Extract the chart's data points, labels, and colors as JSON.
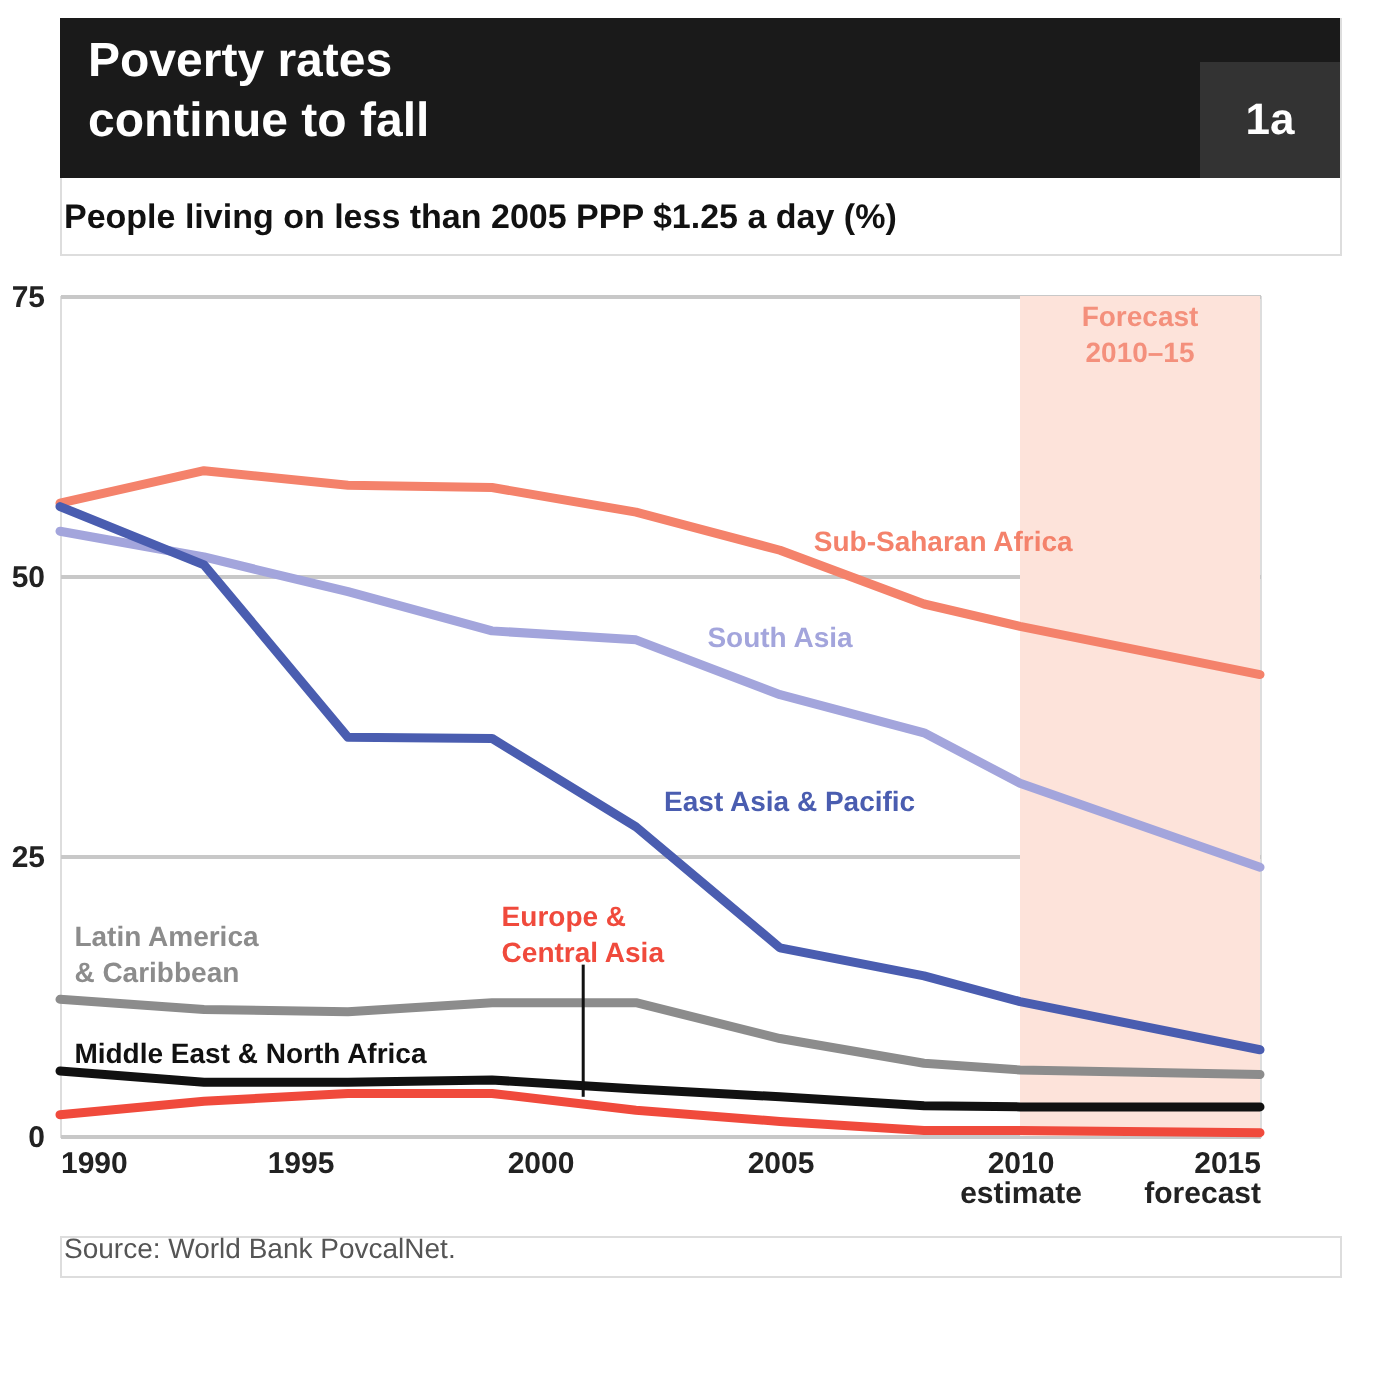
{
  "chart_data": {
    "type": "line",
    "title": "Poverty rates continue to fall",
    "subtitle": "People living on less than 2005 PPP $1.25 a day (%)",
    "x": [
      1990,
      1993,
      1996,
      1999,
      2002,
      2005,
      2008,
      2010,
      2015
    ],
    "series": [
      {
        "name": "Sub-Saharan Africa",
        "color": "#f4826b",
        "values": [
          56.5,
          59.4,
          58.1,
          57.9,
          55.7,
          52.3,
          47.5,
          45.5,
          41.2
        ]
      },
      {
        "name": "South Asia",
        "color": "#a3a5dc",
        "values": [
          54.0,
          51.7,
          48.6,
          45.1,
          44.3,
          39.4,
          36.0,
          31.5,
          24.0
        ]
      },
      {
        "name": "East Asia & Pacific",
        "color": "#4a5db0",
        "values": [
          56.2,
          51.0,
          35.6,
          35.5,
          27.6,
          16.8,
          14.3,
          12.0,
          7.7
        ]
      },
      {
        "name": "Latin America\n& Caribbean",
        "color": "#8c8c8c",
        "values": [
          12.2,
          11.3,
          11.1,
          11.9,
          11.9,
          8.7,
          6.5,
          5.9,
          5.5
        ]
      },
      {
        "name": "Middle East & North Africa",
        "color": "#111111",
        "values": [
          5.8,
          4.8,
          4.8,
          5.0,
          4.2,
          3.5,
          2.7,
          2.6,
          2.6
        ]
      },
      {
        "name": "Europe &\nCentral Asia",
        "color": "#f04a3c",
        "values": [
          1.9,
          3.1,
          3.8,
          3.8,
          2.3,
          1.3,
          0.5,
          0.5,
          0.3
        ]
      }
    ],
    "xlim": [
      1990,
      2015
    ],
    "xticks": [
      1990,
      1995,
      2000,
      2005,
      {
        "value": 2010,
        "label": "2010\nestimate"
      },
      {
        "value": 2015,
        "label": "2015\nforecast"
      }
    ],
    "ylim": [
      0,
      75
    ],
    "yticks": [
      0,
      25,
      50,
      75
    ],
    "grid": "y",
    "legend": false,
    "bands": [
      {
        "axis": "x",
        "from": 2010,
        "to": 2015,
        "label": "Forecast\n2010–15",
        "color": "#fde3da"
      }
    ],
    "annotations": [
      "1a",
      "Source: World Bank PovcalNet."
    ]
  }
}
